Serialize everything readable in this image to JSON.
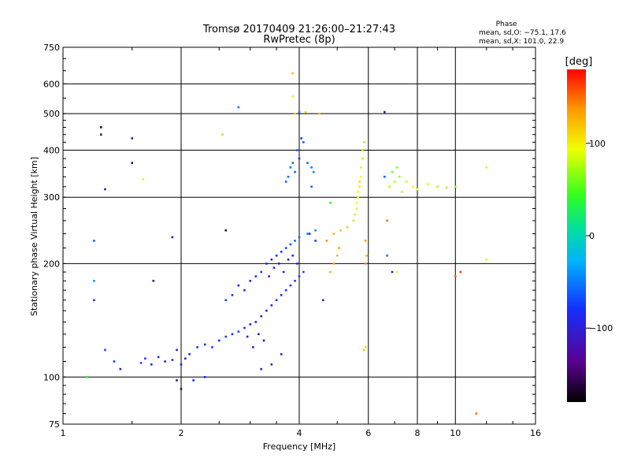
{
  "chart_data": {
    "type": "scatter",
    "title": "Tromsø 20170409 21:26:00–21:27:43",
    "subtitle": "RwPretec (8p)",
    "xlabel": "Frequency [MHz]",
    "ylabel": "Stationary phase Virtual Height [km]",
    "x_scale": "log2",
    "y_scale": "log",
    "xlim": [
      1,
      16
    ],
    "ylim": [
      75,
      750
    ],
    "x_ticks": [
      1,
      2,
      4,
      6,
      8,
      10,
      16
    ],
    "x_tick_labels": [
      "1",
      "2",
      "4",
      "6",
      "8",
      "10",
      "16"
    ],
    "x_grid": [
      2,
      4,
      6,
      8,
      10
    ],
    "y_ticks": [
      75,
      100,
      200,
      300,
      400,
      500,
      600,
      750
    ],
    "y_tick_labels": [
      "75",
      "100",
      "200",
      "300",
      "400",
      "500",
      "600",
      "750"
    ],
    "y_grid": [
      100,
      200,
      300,
      400,
      500,
      600
    ],
    "grid": true,
    "phase_stats": {
      "heading": "Phase",
      "line1": "mean, sd,O: −75.1, 17.6",
      "line2": "mean, sd,X: 101.0, 22.9"
    },
    "colorbar": {
      "label": "[deg]",
      "range": [
        -180,
        180
      ],
      "ticks": [
        100,
        0,
        -100
      ],
      "tick_labels": [
        "100",
        "0",
        "−100"
      ]
    },
    "clusters": [
      {
        "name": "low-frequency-cluster-blue",
        "points": [
          [
            1.82,
            110,
            -110
          ],
          [
            1.9,
            111,
            -95
          ],
          [
            2.0,
            108,
            -85
          ],
          [
            2.05,
            112,
            -100
          ],
          [
            2.1,
            115,
            -90
          ],
          [
            1.75,
            113,
            -85
          ],
          [
            1.68,
            108,
            -80
          ],
          [
            1.58,
            109,
            -70
          ],
          [
            1.62,
            112,
            -75
          ],
          [
            1.95,
            118,
            -110
          ],
          [
            2.2,
            120,
            -80
          ],
          [
            2.3,
            122,
            -85
          ],
          [
            2.4,
            120,
            -75
          ],
          [
            2.5,
            125,
            -80
          ],
          [
            2.6,
            128,
            -78
          ],
          [
            2.7,
            130,
            -85
          ],
          [
            2.8,
            132,
            -70
          ],
          [
            2.9,
            135,
            -88
          ],
          [
            3.0,
            138,
            -95
          ],
          [
            3.1,
            140,
            -100
          ],
          [
            3.2,
            145,
            -110
          ],
          [
            3.3,
            150,
            -105
          ],
          [
            3.4,
            155,
            -95
          ],
          [
            3.5,
            160,
            -90
          ],
          [
            3.6,
            165,
            -85
          ],
          [
            3.7,
            170,
            -80
          ],
          [
            3.8,
            175,
            -78
          ],
          [
            3.9,
            180,
            -75
          ],
          [
            4.0,
            185,
            -70
          ],
          [
            4.1,
            190,
            -65
          ],
          [
            3.15,
            130,
            -115
          ],
          [
            3.25,
            125,
            -120
          ],
          [
            3.05,
            120,
            -125
          ],
          [
            2.95,
            128,
            -110
          ]
        ]
      },
      {
        "name": "mid-cluster-spread",
        "points": [
          [
            2.6,
            160,
            -80
          ],
          [
            2.7,
            165,
            -75
          ],
          [
            2.8,
            175,
            -90
          ],
          [
            2.9,
            170,
            -85
          ],
          [
            3.0,
            180,
            -95
          ],
          [
            3.1,
            185,
            -80
          ],
          [
            3.2,
            190,
            -75
          ],
          [
            3.3,
            200,
            -85
          ],
          [
            3.4,
            205,
            -90
          ],
          [
            3.5,
            210,
            -80
          ],
          [
            3.6,
            215,
            -75
          ],
          [
            3.7,
            220,
            -70
          ],
          [
            3.8,
            225,
            -65
          ],
          [
            3.9,
            230,
            -60
          ],
          [
            4.0,
            235,
            -55
          ],
          [
            4.2,
            240,
            -50
          ],
          [
            4.4,
            245,
            -45
          ],
          [
            3.45,
            195,
            -110
          ],
          [
            3.35,
            185,
            -115
          ],
          [
            3.55,
            200,
            -105
          ],
          [
            3.65,
            190,
            -100
          ],
          [
            3.75,
            205,
            -95
          ],
          [
            3.85,
            210,
            -90
          ],
          [
            3.95,
            200,
            -85
          ]
        ]
      },
      {
        "name": "upper-cluster-blue",
        "points": [
          [
            3.7,
            330,
            -60
          ],
          [
            3.75,
            340,
            -55
          ],
          [
            3.8,
            360,
            -50
          ],
          [
            3.85,
            370,
            -55
          ],
          [
            3.9,
            350,
            -60
          ],
          [
            4.0,
            380,
            -70
          ],
          [
            4.1,
            420,
            -65
          ],
          [
            4.2,
            370,
            -55
          ],
          [
            4.3,
            360,
            -50
          ],
          [
            4.35,
            350,
            -45
          ],
          [
            3.95,
            400,
            -60
          ],
          [
            4.05,
            430,
            -75
          ]
        ]
      },
      {
        "name": "orange-f-trace",
        "points": [
          [
            4.8,
            190,
            120
          ],
          [
            4.9,
            200,
            130
          ],
          [
            5.0,
            210,
            125
          ],
          [
            5.05,
            220,
            135
          ],
          [
            4.7,
            230,
            140
          ],
          [
            4.9,
            240,
            130
          ],
          [
            5.1,
            245,
            120
          ],
          [
            5.3,
            250,
            115
          ],
          [
            5.5,
            260,
            110
          ],
          [
            5.55,
            270,
            105
          ],
          [
            5.6,
            280,
            100
          ],
          [
            5.6,
            290,
            95
          ],
          [
            5.65,
            300,
            90
          ],
          [
            5.65,
            310,
            100
          ],
          [
            5.7,
            320,
            105
          ],
          [
            5.7,
            330,
            110
          ],
          [
            5.75,
            340,
            95
          ],
          [
            5.75,
            360,
            85
          ],
          [
            5.8,
            380,
            80
          ],
          [
            5.8,
            400,
            75
          ],
          [
            5.85,
            420,
            70
          ],
          [
            5.9,
            200,
            140
          ],
          [
            5.95,
            210,
            130
          ],
          [
            5.9,
            230,
            135
          ]
        ]
      },
      {
        "name": "yellow-x-trace",
        "points": [
          [
            6.8,
            320,
            80
          ],
          [
            7.0,
            330,
            75
          ],
          [
            7.2,
            340,
            70
          ],
          [
            7.5,
            330,
            85
          ],
          [
            7.8,
            320,
            90
          ],
          [
            8.0,
            315,
            95
          ],
          [
            8.5,
            325,
            85
          ],
          [
            9.0,
            320,
            80
          ],
          [
            9.5,
            318,
            75
          ],
          [
            10.0,
            320,
            70
          ],
          [
            6.9,
            350,
            60
          ],
          [
            7.1,
            360,
            65
          ],
          [
            6.6,
            340,
            -60
          ],
          [
            7.3,
            310,
            80
          ]
        ]
      },
      {
        "name": "scattered",
        "points": [
          [
            1.25,
            460,
            -160
          ],
          [
            1.25,
            440,
            -150
          ],
          [
            1.5,
            430,
            -140
          ],
          [
            1.5,
            370,
            -150
          ],
          [
            1.6,
            335,
            100
          ],
          [
            1.28,
            315,
            -120
          ],
          [
            1.2,
            230,
            -60
          ],
          [
            1.2,
            180,
            -40
          ],
          [
            1.2,
            160,
            -90
          ],
          [
            1.28,
            118,
            -70
          ],
          [
            1.35,
            110,
            -75
          ],
          [
            1.4,
            105,
            -100
          ],
          [
            1.15,
            100,
            30
          ],
          [
            1.7,
            180,
            -140
          ],
          [
            1.9,
            235,
            -120
          ],
          [
            1.95,
            98,
            -130
          ],
          [
            2.0,
            93,
            -150
          ],
          [
            2.15,
            98,
            -80
          ],
          [
            2.3,
            100,
            -90
          ],
          [
            2.55,
            440,
            110
          ],
          [
            2.6,
            245,
            -150
          ],
          [
            2.8,
            520,
            -50
          ],
          [
            3.2,
            105,
            -100
          ],
          [
            3.4,
            108,
            -95
          ],
          [
            3.6,
            115,
            -90
          ],
          [
            3.85,
            640,
            120
          ],
          [
            3.85,
            555,
            90
          ],
          [
            3.9,
            500,
            115
          ],
          [
            4.0,
            505,
            -40
          ],
          [
            4.15,
            505,
            110
          ],
          [
            4.5,
            500,
            120
          ],
          [
            4.25,
            240,
            -80
          ],
          [
            4.4,
            230,
            -75
          ],
          [
            4.6,
            160,
            -90
          ],
          [
            5.9,
            120,
            110
          ],
          [
            5.85,
            118,
            120
          ],
          [
            6.6,
            505,
            -120
          ],
          [
            6.9,
            190,
            -100
          ],
          [
            7.1,
            190,
            90
          ],
          [
            6.7,
            210,
            -50
          ],
          [
            6.7,
            260,
            150
          ],
          [
            10.0,
            185,
            150
          ],
          [
            10.3,
            190,
            160
          ],
          [
            11.3,
            80,
            150
          ],
          [
            12.0,
            205,
            100
          ],
          [
            12.0,
            360,
            100
          ],
          [
            4.8,
            290,
            40
          ],
          [
            4.3,
            320,
            -60
          ]
        ]
      }
    ]
  }
}
